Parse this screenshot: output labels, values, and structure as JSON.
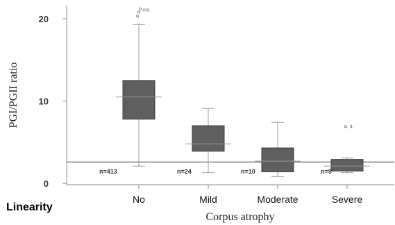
{
  "side_label": "Linearity",
  "chart_data": {
    "type": "box",
    "ylabel": "PGI/PGII ratio",
    "xlabel": "Corpus atrophy",
    "ylim": [
      0,
      22
    ],
    "yticks": [
      0,
      10,
      20
    ],
    "reference_line": 2.6,
    "categories": [
      "No",
      "Mild",
      "Moderate",
      "Severe"
    ],
    "n_labels": [
      "n=413",
      "n=24",
      "n=10",
      "n=9"
    ],
    "boxes": [
      {
        "whisker_low": 2.1,
        "q1": 7.8,
        "median": 10.5,
        "q3": 12.5,
        "whisker_high": 19.3,
        "outliers": [
          20.3,
          20.8,
          21.2
        ]
      },
      {
        "whisker_low": 1.3,
        "q1": 3.9,
        "median": 4.8,
        "q3": 7.0,
        "whisker_high": 9.1,
        "outliers": []
      },
      {
        "whisker_low": 0.8,
        "q1": 1.4,
        "median": 2.7,
        "q3": 4.3,
        "whisker_high": 7.4,
        "outliers": []
      },
      {
        "whisker_low": 1.3,
        "q1": 1.5,
        "median": 2.1,
        "q3": 2.9,
        "whisker_high": 3.1,
        "outliers": [
          6.9
        ]
      }
    ],
    "outlier_markers": [
      "n/s",
      "4"
    ],
    "colors": {
      "box": "#5f5f5f",
      "box_edge": "#3c3c3c",
      "whisker": "#9a9a9a",
      "axis": "#888888",
      "refline": "#444444"
    }
  }
}
